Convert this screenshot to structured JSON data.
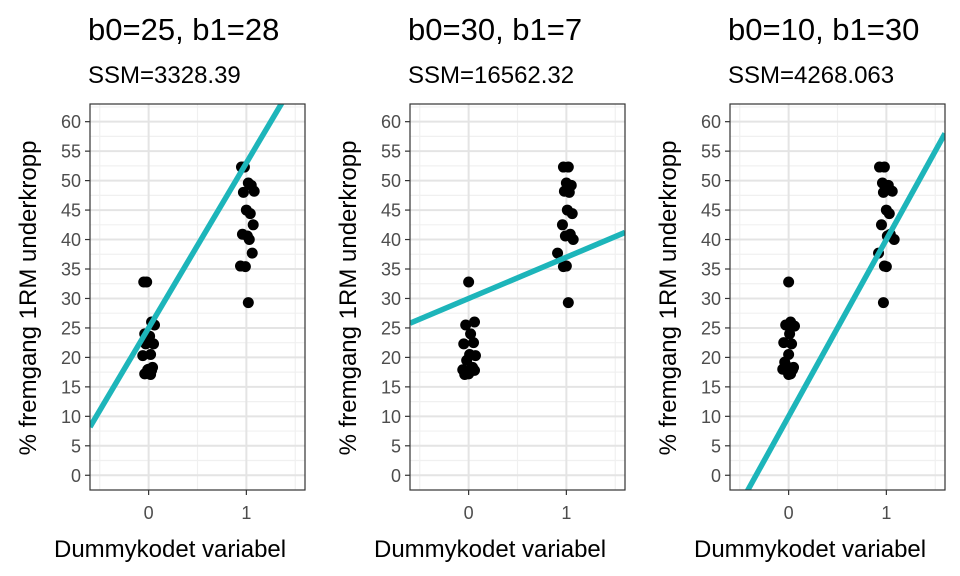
{
  "line_color": "#1DB5BA",
  "point_color": "#000000",
  "panel_border_color": "#333333",
  "chart_data": [
    {
      "type": "scatter",
      "title": "b0=25, b1=28",
      "subtitle": "SSM=3328.39",
      "xlabel": "Dummykodet variabel",
      "ylabel": "% fremgang 1RM underkropp",
      "xlim": [
        -0.6,
        1.6
      ],
      "ylim": [
        -2.5,
        63
      ],
      "xticks": [
        0,
        1
      ],
      "yticks": [
        0,
        5,
        10,
        15,
        20,
        25,
        30,
        35,
        40,
        45,
        50,
        55,
        60
      ],
      "grid": true,
      "line": {
        "intercept": 25,
        "slope": 28
      },
      "points": {
        "x": [
          -0.05,
          -0.02,
          0.03,
          0.06,
          -0.04,
          0.01,
          0.05,
          -0.03,
          0.02,
          -0.06,
          0.04,
          0.0,
          -0.01,
          0.03,
          -0.04,
          0.02,
          0.95,
          0.98,
          1.02,
          1.05,
          1.08,
          0.97,
          1.0,
          1.04,
          1.07,
          0.96,
          1.01,
          1.03,
          1.06,
          0.94,
          0.99,
          1.02
        ],
        "y": [
          32.8,
          32.8,
          26.0,
          25.5,
          24.0,
          23.6,
          22.3,
          22.3,
          20.5,
          20.3,
          18.3,
          18.0,
          17.9,
          17.8,
          17.2,
          17.1,
          52.3,
          52.3,
          49.6,
          49.2,
          48.2,
          48.0,
          45.0,
          44.4,
          42.5,
          40.9,
          40.6,
          40.0,
          37.7,
          35.5,
          35.4,
          29.3
        ]
      }
    },
    {
      "type": "scatter",
      "title": "b0=30, b1=7",
      "subtitle": "SSM=16562.32",
      "xlabel": "Dummykodet variabel",
      "ylabel": "% fremgang 1RM underkropp",
      "xlim": [
        -0.6,
        1.6
      ],
      "ylim": [
        -2.5,
        63
      ],
      "xticks": [
        0,
        1
      ],
      "yticks": [
        0,
        5,
        10,
        15,
        20,
        25,
        30,
        35,
        40,
        45,
        50,
        55,
        60
      ],
      "grid": true,
      "line": {
        "intercept": 30,
        "slope": 7
      },
      "points": {
        "x": [
          0.0,
          0.06,
          -0.03,
          0.02,
          0.05,
          -0.05,
          0.01,
          0.07,
          -0.02,
          0.04,
          0.03,
          -0.06,
          0.06,
          0.0,
          -0.04,
          0.02,
          0.97,
          1.02,
          1.0,
          1.05,
          0.98,
          1.03,
          1.01,
          1.06,
          0.96,
          1.04,
          0.99,
          1.07,
          0.91,
          1.0,
          0.97,
          1.02
        ],
        "y": [
          32.8,
          26.0,
          25.5,
          24.0,
          22.5,
          22.3,
          20.5,
          20.3,
          19.5,
          18.3,
          18.0,
          17.9,
          17.8,
          17.2,
          17.1,
          17.9,
          52.3,
          52.3,
          49.6,
          49.2,
          48.2,
          48.0,
          45.0,
          44.4,
          42.5,
          40.9,
          40.6,
          40.0,
          37.7,
          35.5,
          35.4,
          29.3
        ]
      }
    },
    {
      "type": "scatter",
      "title": "b0=10, b1=30",
      "subtitle": "SSM=4268.063",
      "xlabel": "Dummykodet variabel",
      "ylabel": "% fremgang 1RM underkropp",
      "xlim": [
        -0.6,
        1.6
      ],
      "ylim": [
        -2.5,
        63
      ],
      "xticks": [
        0,
        1
      ],
      "yticks": [
        0,
        5,
        10,
        15,
        20,
        25,
        30,
        35,
        40,
        45,
        50,
        55,
        60
      ],
      "grid": true,
      "line": {
        "intercept": 10,
        "slope": 30
      },
      "points": {
        "x": [
          0.0,
          0.02,
          -0.03,
          0.06,
          0.01,
          -0.05,
          0.03,
          0.0,
          -0.02,
          0.05,
          -0.06,
          0.04,
          -0.01,
          0.02,
          0.0,
          -0.04,
          0.93,
          0.98,
          0.96,
          1.02,
          1.06,
          0.97,
          1.0,
          1.03,
          0.95,
          1.04,
          1.01,
          1.08,
          0.92,
          0.98,
          1.0,
          0.97
        ],
        "y": [
          32.8,
          26.0,
          25.5,
          25.3,
          24.0,
          22.5,
          22.3,
          20.5,
          18.5,
          18.3,
          18.0,
          17.9,
          17.8,
          17.2,
          17.1,
          19.2,
          52.3,
          52.3,
          49.6,
          49.2,
          48.2,
          48.0,
          45.0,
          44.4,
          42.5,
          40.9,
          40.6,
          40.0,
          37.7,
          35.5,
          35.4,
          29.3
        ]
      }
    }
  ]
}
